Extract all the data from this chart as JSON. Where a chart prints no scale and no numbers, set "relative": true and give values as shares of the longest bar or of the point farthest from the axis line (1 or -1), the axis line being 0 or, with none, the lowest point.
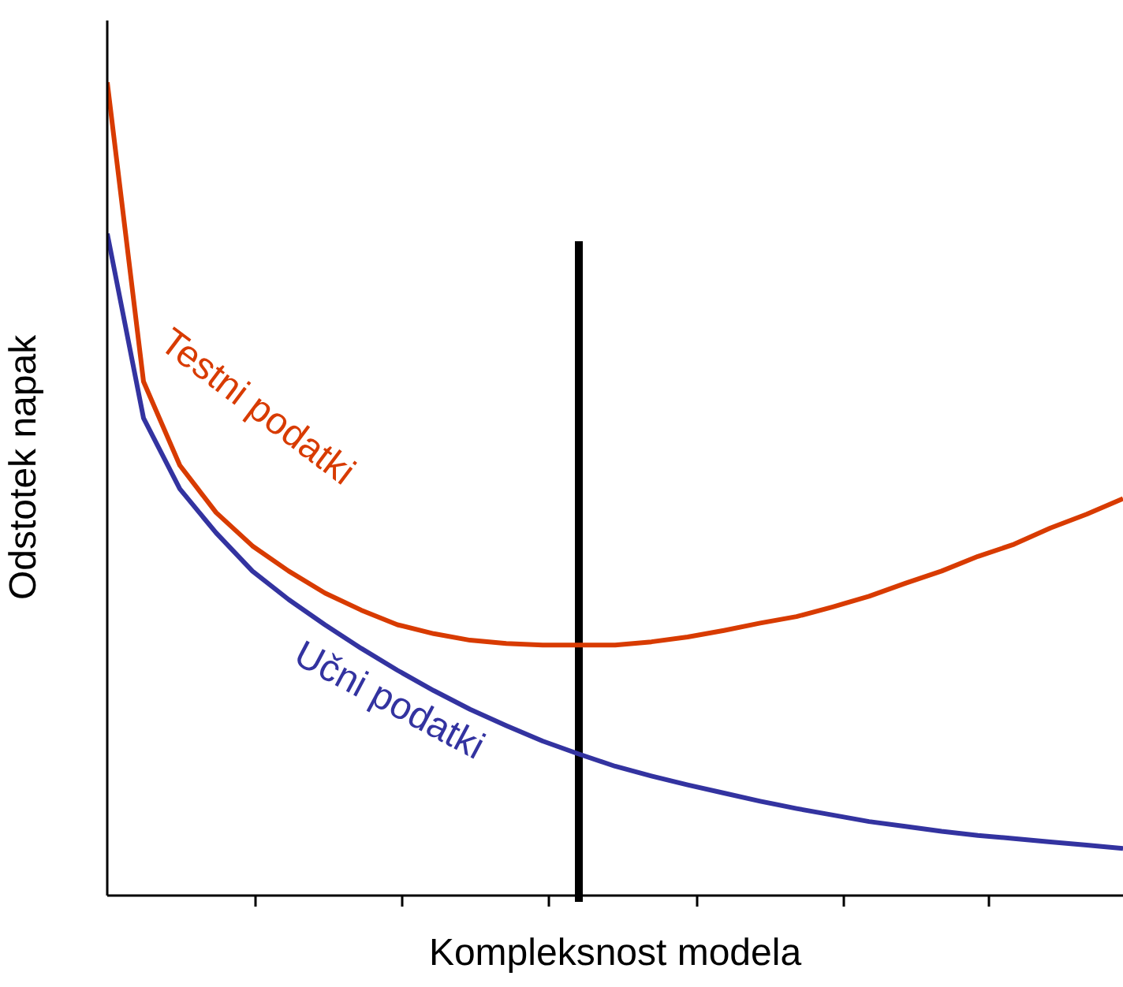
{
  "chart_data": {
    "type": "line",
    "relative": true,
    "xlabel": "Kompleksnost modela",
    "ylabel": "Odstotek napak",
    "categories": [
      null,
      null,
      null,
      null,
      null,
      null,
      null,
      null,
      null,
      null,
      null,
      null,
      null,
      null,
      null,
      null,
      null,
      null,
      null,
      null,
      null,
      null,
      null,
      null,
      null,
      null,
      null,
      null,
      null
    ],
    "grid": false,
    "legend": false,
    "marker": "none",
    "line_style": "solid",
    "series": [
      {
        "name": "Testni podatki",
        "color": "#d83b01",
        "values": [
          1.0,
          0.632,
          0.529,
          0.471,
          0.43,
          0.399,
          0.372,
          0.351,
          0.333,
          0.322,
          0.314,
          0.31,
          0.308,
          0.308,
          0.308,
          0.312,
          0.318,
          0.326,
          0.335,
          0.343,
          0.355,
          0.368,
          0.384,
          0.399,
          0.417,
          0.432,
          0.452,
          0.469,
          0.488
        ]
      },
      {
        "name": "Učni podatki",
        "color": "#3333a0",
        "values": [
          0.814,
          0.587,
          0.5,
          0.446,
          0.399,
          0.364,
          0.333,
          0.304,
          0.277,
          0.252,
          0.229,
          0.209,
          0.19,
          0.174,
          0.159,
          0.147,
          0.136,
          0.126,
          0.116,
          0.107,
          0.099,
          0.091,
          0.085,
          0.079,
          0.074,
          0.07,
          0.066,
          0.062,
          0.058
        ]
      }
    ]
  }
}
